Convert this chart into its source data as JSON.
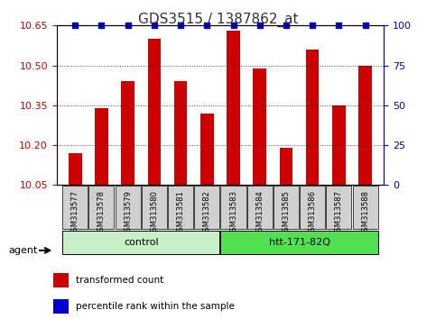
{
  "title": "GDS3515 / 1387862_at",
  "samples": [
    "GSM313577",
    "GSM313578",
    "GSM313579",
    "GSM313580",
    "GSM313581",
    "GSM313582",
    "GSM313583",
    "GSM313584",
    "GSM313585",
    "GSM313586",
    "GSM313587",
    "GSM313588"
  ],
  "values": [
    10.17,
    10.34,
    10.44,
    10.6,
    10.44,
    10.32,
    10.63,
    10.49,
    10.19,
    10.56,
    10.35,
    10.5
  ],
  "percentile_ranks": [
    100,
    100,
    100,
    100,
    100,
    100,
    100,
    100,
    100,
    100,
    100,
    100
  ],
  "ylim_left": [
    10.05,
    10.65
  ],
  "ylim_right": [
    0,
    100
  ],
  "yticks_left": [
    10.05,
    10.2,
    10.35,
    10.5,
    10.65
  ],
  "yticks_right": [
    0,
    25,
    50,
    75,
    100
  ],
  "bar_color": "#cc0000",
  "dot_color": "#0000cc",
  "bar_width": 0.5,
  "groups": [
    {
      "label": "control",
      "start": 0,
      "end": 5,
      "color": "#c8f0c8"
    },
    {
      "label": "htt-171-82Q",
      "start": 6,
      "end": 11,
      "color": "#50e050"
    }
  ],
  "agent_label": "agent",
  "legend_items": [
    {
      "color": "#cc0000",
      "label": "transformed count"
    },
    {
      "color": "#0000cc",
      "label": "percentile rank within the sample"
    }
  ],
  "title_color": "#333333",
  "left_axis_color": "#cc0000",
  "right_axis_color": "#0000cc",
  "sample_box_color": "#d0d0d0"
}
